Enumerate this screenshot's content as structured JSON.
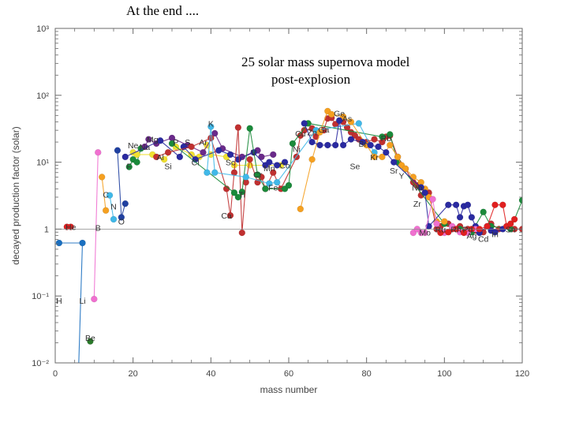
{
  "slide": {
    "title": "At the end ...."
  },
  "chart_data": {
    "type": "scatter",
    "title": "25 solar mass supernova model",
    "subtitle": "post-explosion",
    "xlabel": "mass number",
    "ylabel": "decayed production factor (solar)",
    "xscale": "linear",
    "yscale": "log",
    "xlim": [
      0,
      120
    ],
    "ylim": [
      0.01,
      1000
    ],
    "xticks": [
      {
        "value": 0,
        "label": "0"
      },
      {
        "value": 20,
        "label": "20"
      },
      {
        "value": 40,
        "label": "40"
      },
      {
        "value": 60,
        "label": "60"
      },
      {
        "value": 80,
        "label": "80"
      },
      {
        "value": 100,
        "label": "100"
      },
      {
        "value": 120,
        "label": "120"
      }
    ],
    "yticks": [
      {
        "value": 0.01,
        "label": "10⁻²"
      },
      {
        "value": 0.1,
        "label": "10⁻¹"
      },
      {
        "value": 1,
        "label": "1"
      },
      {
        "value": 10,
        "label": "10¹"
      },
      {
        "value": 100,
        "label": "10²"
      },
      {
        "value": 1000,
        "label": "10³"
      }
    ],
    "reference_line": {
      "y": 1
    },
    "grid": false,
    "series": [
      {
        "color": "#e02020",
        "points": [
          [
            3,
            1.08
          ],
          [
            4,
            1.08
          ]
        ]
      },
      {
        "color": "#1a6fc0",
        "points": [
          [
            1,
            0.62
          ],
          [
            7,
            0.62
          ],
          [
            6,
            0.008
          ]
        ]
      },
      {
        "color": "#f070d0",
        "points": [
          [
            10,
            0.09
          ],
          [
            11,
            14
          ]
        ]
      },
      {
        "color": "#2a7a2a",
        "points": [
          [
            9,
            0.021
          ]
        ]
      },
      {
        "color": "#f5a020",
        "points": [
          [
            12,
            6
          ],
          [
            13,
            1.9
          ]
        ]
      },
      {
        "color": "#40b8e8",
        "points": [
          [
            14,
            3.2
          ],
          [
            15,
            1.4
          ]
        ]
      },
      {
        "color": "#2040a0",
        "points": [
          [
            16,
            15
          ],
          [
            17,
            1.5
          ],
          [
            18,
            2.4
          ]
        ]
      },
      {
        "color": "#1a8a3a",
        "points": [
          [
            19,
            8.5
          ],
          [
            20,
            11
          ],
          [
            21,
            10
          ],
          [
            22,
            16
          ]
        ]
      },
      {
        "color": "#f0e030",
        "points": [
          [
            20,
            14
          ],
          [
            21,
            13
          ],
          [
            25,
            13
          ],
          [
            28,
            11
          ],
          [
            31,
            17
          ],
          [
            35,
            13
          ],
          [
            37,
            12
          ],
          [
            39,
            18
          ],
          [
            40,
            13
          ],
          [
            44,
            12
          ],
          [
            46,
            9
          ],
          [
            50,
            9
          ],
          [
            58,
            9
          ]
        ]
      },
      {
        "color": "#6a2a8a",
        "points": [
          [
            23,
            17
          ],
          [
            24,
            22
          ],
          [
            26,
            19
          ],
          [
            30,
            23
          ],
          [
            34,
            18
          ],
          [
            38,
            14
          ],
          [
            41,
            27
          ],
          [
            43,
            16
          ],
          [
            48,
            12
          ],
          [
            52,
            15
          ],
          [
            53,
            12
          ],
          [
            56,
            13
          ]
        ]
      },
      {
        "color": "#2a2aa0",
        "points": [
          [
            18,
            12
          ],
          [
            27,
            21
          ],
          [
            32,
            12
          ],
          [
            33,
            17
          ],
          [
            36,
            11
          ],
          [
            42,
            15
          ],
          [
            45,
            13
          ],
          [
            47,
            11
          ],
          [
            51,
            14
          ],
          [
            54,
            9
          ],
          [
            55,
            10
          ],
          [
            57,
            9
          ],
          [
            59,
            10
          ]
        ]
      },
      {
        "color": "#c03030",
        "points": [
          [
            26,
            12
          ],
          [
            29,
            14
          ],
          [
            35,
            17
          ],
          [
            40,
            23
          ],
          [
            44,
            4
          ],
          [
            45,
            1.6
          ],
          [
            46,
            7
          ],
          [
            47,
            33
          ],
          [
            48,
            0.88
          ],
          [
            49,
            5
          ],
          [
            50,
            11
          ],
          [
            52,
            5
          ],
          [
            53,
            6
          ],
          [
            54,
            4
          ],
          [
            56,
            7
          ],
          [
            58,
            4
          ],
          [
            62,
            12
          ],
          [
            63,
            25
          ],
          [
            64,
            30
          ],
          [
            66,
            32
          ],
          [
            67,
            24
          ],
          [
            69,
            30
          ],
          [
            70,
            45
          ],
          [
            71,
            46
          ],
          [
            72,
            37
          ],
          [
            74,
            40
          ],
          [
            75,
            33
          ],
          [
            76,
            28
          ],
          [
            77,
            25
          ],
          [
            78,
            22
          ],
          [
            80,
            20
          ],
          [
            82,
            22
          ],
          [
            84,
            20
          ],
          [
            85,
            24
          ],
          [
            86,
            25
          ],
          [
            88,
            12
          ],
          [
            90,
            8
          ],
          [
            92,
            5
          ],
          [
            93,
            4.5
          ],
          [
            94,
            3.2
          ],
          [
            96,
            3.5
          ],
          [
            98,
            1.0
          ],
          [
            99,
            1.1
          ],
          [
            101,
            1.2
          ],
          [
            102,
            1.0
          ],
          [
            104,
            1.1
          ],
          [
            106,
            1.0
          ],
          [
            108,
            0.95
          ],
          [
            110,
            0.9
          ],
          [
            112,
            1.2
          ],
          [
            114,
            1.0
          ],
          [
            116,
            1.1
          ],
          [
            118,
            1.0
          ],
          [
            120,
            1.0
          ]
        ]
      },
      {
        "color": "#1a8a3a",
        "points": [
          [
            30,
            19
          ],
          [
            46,
            3.5
          ],
          [
            47,
            3
          ],
          [
            48,
            3.6
          ],
          [
            50,
            32
          ],
          [
            52,
            6.5
          ],
          [
            54,
            4
          ],
          [
            59,
            4
          ],
          [
            60,
            4.5
          ],
          [
            61,
            19
          ],
          [
            65,
            38
          ],
          [
            84,
            24
          ],
          [
            86,
            26
          ],
          [
            88,
            10
          ],
          [
            100,
            1.2
          ],
          [
            104,
            1.0
          ],
          [
            107,
            0.9
          ],
          [
            110,
            1.8
          ],
          [
            112,
            1.1
          ],
          [
            117,
            1.0
          ],
          [
            120,
            2.7
          ]
        ]
      },
      {
        "color": "#40b8e8",
        "points": [
          [
            39,
            7
          ],
          [
            40,
            34
          ],
          [
            41,
            7
          ],
          [
            49,
            6
          ],
          [
            55,
            4.8
          ],
          [
            57,
            5
          ],
          [
            67,
            30
          ],
          [
            78,
            38
          ],
          [
            82,
            14
          ]
        ]
      },
      {
        "color": "#f5a020",
        "points": [
          [
            63,
            2
          ],
          [
            66,
            11
          ],
          [
            68,
            28
          ],
          [
            70,
            58
          ],
          [
            71,
            52
          ],
          [
            74,
            48
          ],
          [
            76,
            40
          ],
          [
            80,
            18
          ],
          [
            82,
            12
          ],
          [
            84,
            12
          ],
          [
            86,
            18
          ],
          [
            88,
            12
          ],
          [
            89,
            9
          ],
          [
            90,
            8
          ],
          [
            92,
            6
          ],
          [
            94,
            5
          ],
          [
            95,
            4
          ],
          [
            96,
            3
          ],
          [
            98,
            1.3
          ],
          [
            100,
            1.3
          ]
        ]
      },
      {
        "color": "#2a2aa0",
        "points": [
          [
            64,
            38
          ],
          [
            66,
            20
          ],
          [
            68,
            18
          ],
          [
            70,
            18
          ],
          [
            72,
            18
          ],
          [
            73,
            42
          ],
          [
            74,
            18
          ],
          [
            76,
            22
          ],
          [
            79,
            20
          ],
          [
            81,
            18
          ],
          [
            83,
            17
          ],
          [
            85,
            14
          ],
          [
            87,
            10
          ],
          [
            94,
            4.2
          ],
          [
            95,
            3.5
          ],
          [
            96,
            1.1
          ],
          [
            101,
            2.3
          ],
          [
            103,
            2.3
          ],
          [
            104,
            1.5
          ],
          [
            105,
            2.2
          ],
          [
            106,
            2.3
          ],
          [
            107,
            1.5
          ],
          [
            108,
            1.1
          ],
          [
            109,
            0.88
          ],
          [
            111,
            1.1
          ],
          [
            112,
            0.95
          ],
          [
            113,
            0.9
          ],
          [
            115,
            1.0
          ]
        ]
      },
      {
        "color": "#f070d0",
        "points": [
          [
            92,
            0.88
          ],
          [
            93,
            1.0
          ],
          [
            94,
            0.88
          ],
          [
            95,
            0.88
          ],
          [
            97,
            2.8
          ],
          [
            98,
            1.2
          ],
          [
            100,
            0.88
          ],
          [
            102,
            1.1
          ],
          [
            104,
            0.9
          ],
          [
            106,
            0.88
          ],
          [
            108,
            1.0
          ]
        ]
      },
      {
        "color": "#e02020",
        "points": [
          [
            99,
            0.88
          ],
          [
            101,
            0.9
          ],
          [
            103,
            1.0
          ],
          [
            105,
            0.88
          ],
          [
            107,
            1.0
          ],
          [
            109,
            1.0
          ],
          [
            111,
            1.1
          ],
          [
            113,
            2.3
          ],
          [
            115,
            2.3
          ],
          [
            116,
            1.1
          ],
          [
            117,
            1.2
          ],
          [
            118,
            1.4
          ]
        ]
      }
    ],
    "element_labels": [
      {
        "text": "He",
        "x": 4,
        "y": 1.08
      },
      {
        "text": "Li",
        "x": 7,
        "y": 0.085
      },
      {
        "text": "H",
        "x": 1,
        "y": 0.085
      },
      {
        "text": "B",
        "x": 11,
        "y": 1.05
      },
      {
        "text": "Be",
        "x": 9,
        "y": 0.024
      },
      {
        "text": "C",
        "x": 13,
        "y": 3.3
      },
      {
        "text": "N",
        "x": 15,
        "y": 2.2
      },
      {
        "text": "O",
        "x": 17,
        "y": 1.3
      },
      {
        "text": "F",
        "x": 19,
        "y": 8.8
      },
      {
        "text": "Ne",
        "x": 20,
        "y": 18
      },
      {
        "text": "Na",
        "x": 23,
        "y": 17
      },
      {
        "text": "Mg",
        "x": 25,
        "y": 22
      },
      {
        "text": "Al",
        "x": 27,
        "y": 12
      },
      {
        "text": "Si",
        "x": 29,
        "y": 8.8
      },
      {
        "text": "P",
        "x": 31,
        "y": 20
      },
      {
        "text": "S",
        "x": 34,
        "y": 20
      },
      {
        "text": "Cl",
        "x": 36,
        "y": 10
      },
      {
        "text": "Ar",
        "x": 38,
        "y": 20
      },
      {
        "text": "K",
        "x": 40,
        "y": 38
      },
      {
        "text": "Ca",
        "x": 44,
        "y": 1.6
      },
      {
        "text": "Sc",
        "x": 45,
        "y": 10
      },
      {
        "text": "Ti",
        "x": 48,
        "y": 3.3
      },
      {
        "text": "V",
        "x": 51,
        "y": 14
      },
      {
        "text": "Cr",
        "x": 52,
        "y": 6.6
      },
      {
        "text": "Mn",
        "x": 55,
        "y": 8.2
      },
      {
        "text": "Fe",
        "x": 56,
        "y": 4.2
      },
      {
        "text": "Co",
        "x": 59,
        "y": 9
      },
      {
        "text": "Ni",
        "x": 62,
        "y": 16
      },
      {
        "text": "Cu",
        "x": 63,
        "y": 27
      },
      {
        "text": "Zn",
        "x": 66,
        "y": 28
      },
      {
        "text": "Ga",
        "x": 69,
        "y": 31
      },
      {
        "text": "Ge",
        "x": 73,
        "y": 54
      },
      {
        "text": "As",
        "x": 75,
        "y": 45
      },
      {
        "text": "Se",
        "x": 77,
        "y": 8.8
      },
      {
        "text": "Br",
        "x": 79,
        "y": 19
      },
      {
        "text": "Kr",
        "x": 82,
        "y": 12
      },
      {
        "text": "Rb",
        "x": 85,
        "y": 23
      },
      {
        "text": "Sr",
        "x": 87,
        "y": 7.5
      },
      {
        "text": "Y",
        "x": 89,
        "y": 6.3
      },
      {
        "text": "Nb",
        "x": 93,
        "y": 4.2
      },
      {
        "text": "Zr",
        "x": 93,
        "y": 2.4
      },
      {
        "text": "Mo",
        "x": 95,
        "y": 0.9
      },
      {
        "text": "Ru",
        "x": 99,
        "y": 1.0
      },
      {
        "text": "Rh",
        "x": 103,
        "y": 1.0
      },
      {
        "text": "Pd",
        "x": 106,
        "y": 1.0
      },
      {
        "text": "Ag",
        "x": 107,
        "y": 0.8
      },
      {
        "text": "Cd",
        "x": 110,
        "y": 0.72
      },
      {
        "text": "In",
        "x": 113,
        "y": 0.85
      },
      {
        "text": "Sn",
        "x": 117,
        "y": 1.0
      }
    ]
  }
}
